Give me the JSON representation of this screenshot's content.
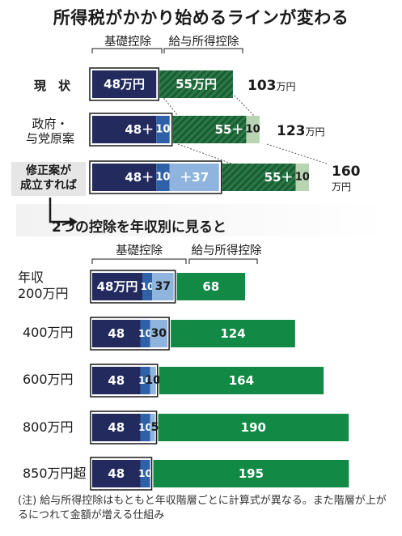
{
  "title": "所得税がかかり始めるラインが変わる",
  "legend_top": {
    "basic": "基礎控除",
    "salary": "給与所得控除"
  },
  "legend_bottom": {
    "basic": "基礎控除",
    "salary": "給与所得控除"
  },
  "subtitle": "2つの控除を年収別に見ると",
  "note": "(注) 給与所得控除はもともと年収階層ごとに計算式が異なる。また階層が上がるにつれて金額が増える仕組み",
  "colors": {
    "navy": "#232b5e",
    "blue": "#2f61a8",
    "lightblue": "#8fb4dd",
    "green": "#128a46",
    "lightgreen": "#b9d4b2",
    "hatch_dark": "#1e6a3a",
    "hatch_light": "#3a8a55"
  },
  "chart_data": [
    {
      "type": "bar",
      "orientation": "horizontal-stacked",
      "categories": [
        "現　状",
        "政府・与党原案",
        "修正案が成立すれば"
      ],
      "segments": [
        {
          "row": 0,
          "parts": [
            {
              "label": "48万円",
              "value": 48,
              "kind": "basic"
            },
            {
              "label": "55万円",
              "value": 55,
              "kind": "salary"
            }
          ]
        },
        {
          "row": 1,
          "parts": [
            {
              "label": "48＋",
              "value": 48,
              "kind": "basic"
            },
            {
              "label": "10",
              "value": 10,
              "kind": "basic_add"
            },
            {
              "label": "55＋",
              "value": 55,
              "kind": "salary"
            },
            {
              "label": "10",
              "value": 10,
              "kind": "salary_add"
            }
          ]
        },
        {
          "row": 2,
          "parts": [
            {
              "label": "48＋",
              "value": 48,
              "kind": "basic"
            },
            {
              "label": "10",
              "value": 10,
              "kind": "basic_add"
            },
            {
              "label": "＋37",
              "value": 37,
              "kind": "basic_add2"
            },
            {
              "label": "55＋",
              "value": 55,
              "kind": "salary"
            },
            {
              "label": "10",
              "value": 10,
              "kind": "salary_add"
            }
          ]
        }
      ],
      "totals": [
        {
          "num": "103",
          "unit": "万円",
          "layout": "inline"
        },
        {
          "num": "123",
          "unit": "万円",
          "layout": "inline"
        },
        {
          "num": "160",
          "unit": "万円",
          "layout": "stacked"
        }
      ]
    },
    {
      "type": "bar",
      "orientation": "horizontal-stacked",
      "categories": [
        "年収200万円",
        "400万円",
        "600万円",
        "800万円",
        "850万円超"
      ],
      "rows": [
        {
          "label_lines": [
            "年収",
            "200万円"
          ],
          "basic": 48,
          "basic_label": "48万円",
          "add10": 10,
          "add10_label": "10",
          "add2": 37,
          "add2_label": "37",
          "salary": 68,
          "salary_label": "68"
        },
        {
          "label_lines": [
            "400万円"
          ],
          "basic": 48,
          "basic_label": "48",
          "add10": 10,
          "add10_label": "10",
          "add2": 30,
          "add2_label": "30",
          "salary": 124,
          "salary_label": "124"
        },
        {
          "label_lines": [
            "600万円"
          ],
          "basic": 48,
          "basic_label": "48",
          "add10": 10,
          "add10_label": "10",
          "add2": 10,
          "add2_label": "10",
          "salary": 164,
          "salary_label": "164"
        },
        {
          "label_lines": [
            "800万円"
          ],
          "basic": 48,
          "basic_label": "48",
          "add10": 10,
          "add10_label": "10",
          "add2": 5,
          "add2_label": "5",
          "salary": 190,
          "salary_label": "190"
        },
        {
          "label_lines": [
            "850万円超"
          ],
          "basic": 48,
          "basic_label": "48",
          "add10": 10,
          "add10_label": "10",
          "add2": 0,
          "add2_label": "",
          "salary": 195,
          "salary_label": "195"
        }
      ]
    }
  ]
}
